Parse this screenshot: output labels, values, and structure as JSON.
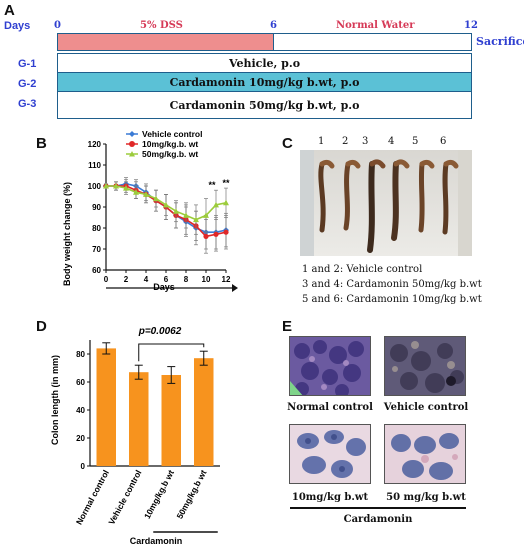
{
  "panelA": {
    "label": "A",
    "days_label": "Days",
    "ticks": [
      "0",
      "6",
      "12"
    ],
    "phase1": "5% DSS",
    "phase2": "Normal Water",
    "end_label": "Sacrifice",
    "colors": {
      "dss": "#ee8e8e",
      "cardamonin10": "#5bc1d6"
    },
    "groups": [
      {
        "id": "G-1",
        "text": "Vehicle, p.o"
      },
      {
        "id": "G-2",
        "text": "Cardamonin 10mg/kg b.wt, p.o"
      },
      {
        "id": "G-3",
        "text": "Cardamonin 50mg/kg  b.wt, p.o"
      }
    ]
  },
  "panelB": {
    "label": "B",
    "chart_data": {
      "type": "line",
      "ylabel": "Body weight change (%)",
      "xlabel": "Days",
      "x": [
        0,
        1,
        2,
        3,
        4,
        5,
        6,
        7,
        8,
        9,
        10,
        11,
        12
      ],
      "xticks": [
        "0",
        "2",
        "4",
        "6",
        "8",
        "10",
        "12"
      ],
      "yticks": [
        "60",
        "70",
        "80",
        "90",
        "100",
        "110",
        "120"
      ],
      "xlim": [
        0,
        12
      ],
      "ylim": [
        60,
        120
      ],
      "legend_position": "top",
      "significance_marks": [
        "**",
        "**"
      ],
      "series": [
        {
          "name": "Vehicle control",
          "color": "#3a7bd5",
          "marker": "diamond",
          "values": [
            100,
            100,
            101,
            100,
            97,
            93,
            90,
            86,
            83,
            80,
            78,
            78,
            79
          ],
          "errors": [
            1,
            2,
            3,
            3,
            4,
            5,
            6,
            6,
            7,
            8,
            8,
            8,
            8
          ]
        },
        {
          "name": "10mg/kg.b.  wt",
          "color": "#e02828",
          "marker": "circle",
          "values": [
            100,
            100,
            100,
            98,
            96,
            93,
            90,
            86,
            84,
            81,
            76,
            77,
            78
          ],
          "errors": [
            1,
            2,
            3,
            4,
            4,
            5,
            6,
            6,
            7,
            7,
            8,
            8,
            8
          ]
        },
        {
          "name": "50mg/kg.b.  wt",
          "color": "#9ccc3c",
          "marker": "triangle",
          "values": [
            100,
            100,
            99,
            97,
            96,
            94,
            91,
            88,
            86,
            84,
            86,
            91,
            92
          ],
          "errors": [
            1,
            2,
            3,
            3,
            4,
            4,
            5,
            5,
            6,
            7,
            8,
            7,
            7
          ]
        }
      ]
    }
  },
  "panelC": {
    "label": "C",
    "numbers": [
      "1",
      "2",
      "3",
      "4",
      "5",
      "6"
    ],
    "legend": [
      "1 and 2: Vehicle control",
      "3 and 4: Cardamonin 50mg/kg b.wt",
      "5 and 6: Cardamonin 10mg/kg b.wt"
    ]
  },
  "panelD": {
    "label": "D",
    "chart_data": {
      "type": "bar",
      "ylabel": "Colon length (in mm)",
      "categories": [
        "Normal control",
        "Vehicle control",
        "10mg/kg.b  wt",
        "50mg/kg.b  wt"
      ],
      "values": [
        84,
        67,
        65,
        77
      ],
      "errors": [
        4,
        5,
        6,
        5
      ],
      "color": "#f7931e",
      "ylim": [
        0,
        90
      ],
      "yticks": [
        "0",
        "20",
        "40",
        "60",
        "80"
      ],
      "annotation": "p=0.0062",
      "group_label": "Cardamonin"
    }
  },
  "panelE": {
    "label": "E",
    "images": [
      {
        "label": "Normal control"
      },
      {
        "label": "Vehicle control"
      },
      {
        "label": "10mg/kg  b.wt"
      },
      {
        "label": "50 mg/kg  b.wt"
      }
    ],
    "group_label": "Cardamonin"
  }
}
